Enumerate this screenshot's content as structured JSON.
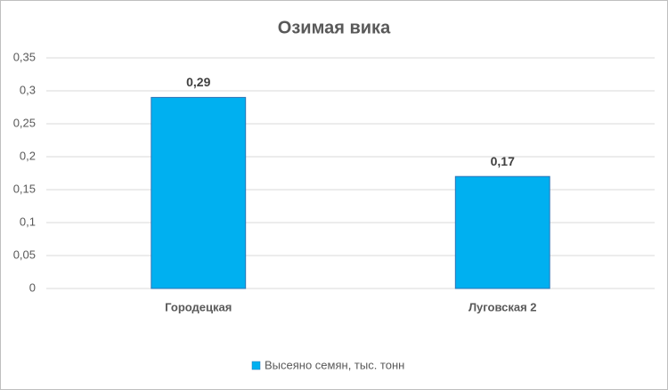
{
  "chart_data": {
    "type": "bar",
    "title": "Озимая вика",
    "categories": [
      "Городецкая",
      "Луговская 2"
    ],
    "series": [
      {
        "name": "Высеяно семян, тыс. тонн",
        "color": "#00b0f0",
        "values": [
          0.29,
          0.17
        ],
        "value_labels": [
          "0,29",
          "0,17"
        ]
      }
    ],
    "ylim": [
      0,
      0.35
    ],
    "yticks": [
      0,
      {
        "value": 0.05,
        "label": "0,05"
      },
      {
        "value": 0.1,
        "label": "0,1"
      },
      {
        "value": 0.15,
        "label": "0,15"
      },
      {
        "value": 0.2,
        "label": "0,2"
      },
      {
        "value": 0.25,
        "label": "0,25"
      },
      {
        "value": 0.3,
        "label": "0,3"
      },
      {
        "value": 0.35,
        "label": "0,35"
      }
    ],
    "grid": true,
    "legend": "bottom"
  }
}
